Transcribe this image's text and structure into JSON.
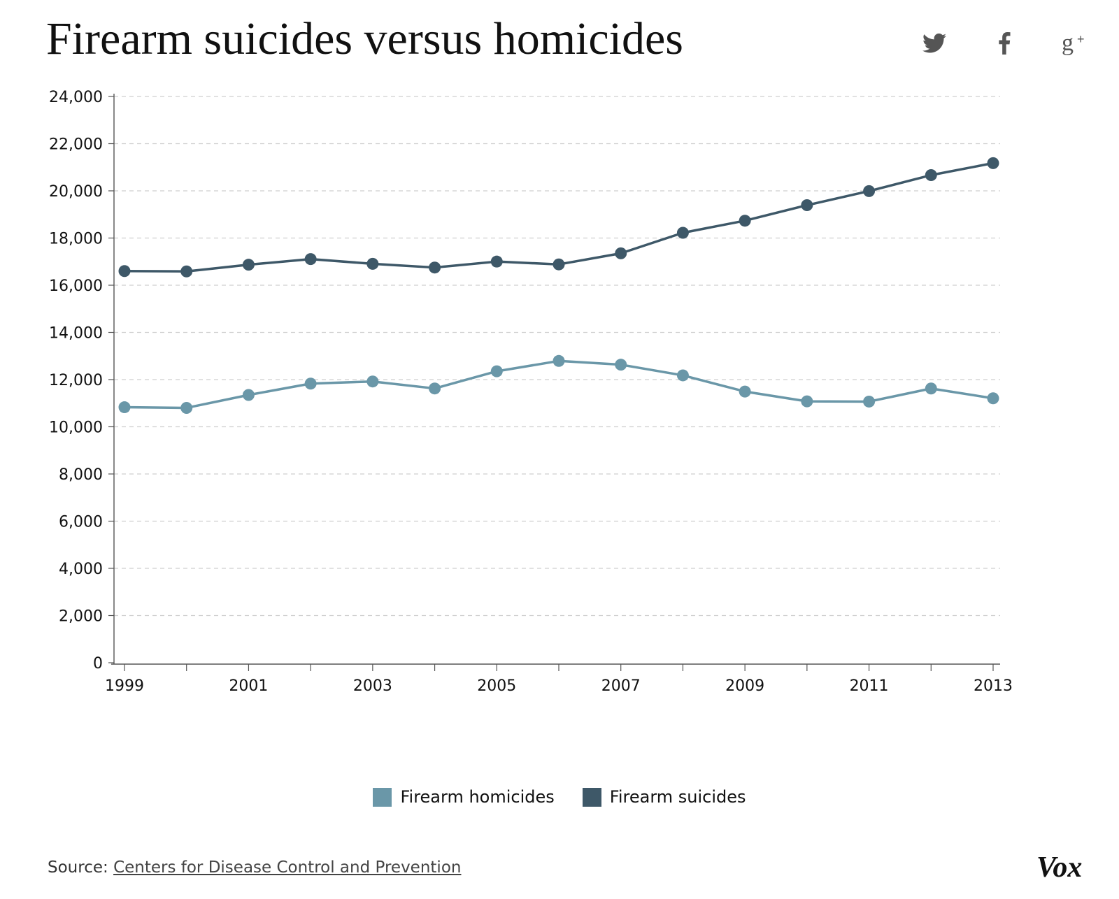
{
  "title": "Firearm suicides versus homicides",
  "share": {
    "icons": [
      "twitter-icon",
      "facebook-icon",
      "google-plus-icon"
    ]
  },
  "chart_data": {
    "type": "line",
    "title": "Firearm suicides versus homicides",
    "xlabel": "",
    "ylabel": "",
    "x": [
      1999,
      2000,
      2001,
      2002,
      2003,
      2004,
      2005,
      2006,
      2007,
      2008,
      2009,
      2010,
      2011,
      2012,
      2013
    ],
    "x_tick_labels": [
      "1999",
      "2001",
      "2003",
      "2005",
      "2007",
      "2009",
      "2011",
      "2013"
    ],
    "ylim": [
      0,
      24000
    ],
    "y_ticks": [
      0,
      2000,
      4000,
      6000,
      8000,
      10000,
      12000,
      14000,
      16000,
      18000,
      20000,
      22000,
      24000
    ],
    "y_tick_labels": [
      "0",
      "2,000",
      "4,000",
      "6,000",
      "8,000",
      "10,000",
      "12,000",
      "14,000",
      "16,000",
      "18,000",
      "20,000",
      "22,000",
      "24,000"
    ],
    "grid": true,
    "legend_position": "bottom-center",
    "series": [
      {
        "name": "Firearm homicides",
        "color": "#6a97a8",
        "values": [
          10828,
          10801,
          11348,
          11829,
          11920,
          11624,
          12352,
          12791,
          12632,
          12179,
          11493,
          11078,
          11068,
          11622,
          11208
        ]
      },
      {
        "name": "Firearm suicides",
        "color": "#3e5868",
        "values": [
          16599,
          16586,
          16869,
          17108,
          16907,
          16750,
          17002,
          16883,
          17352,
          18223,
          18735,
          19392,
          19990,
          20666,
          21175
        ]
      }
    ]
  },
  "legend": {
    "items": [
      {
        "label": "Firearm homicides",
        "color": "#6a97a8"
      },
      {
        "label": "Firearm suicides",
        "color": "#3e5868"
      }
    ]
  },
  "source": {
    "prefix": "Source:",
    "link_text": "Centers for Disease Control and Prevention"
  },
  "brand": {
    "logo_text": "Vox"
  }
}
